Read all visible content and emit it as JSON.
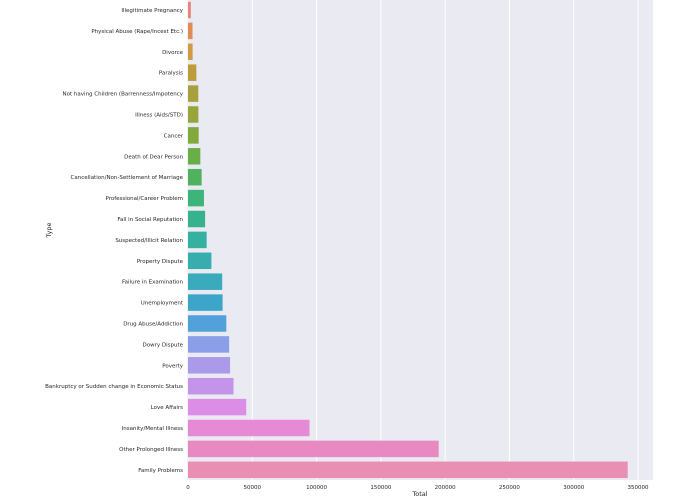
{
  "chart_data": {
    "type": "bar",
    "orientation": "horizontal",
    "xlabel": "Total",
    "ylabel": "Type",
    "xlim": [
      0,
      355000
    ],
    "xticks": [
      0,
      50000,
      100000,
      150000,
      200000,
      250000,
      300000,
      350000
    ],
    "xtick_labels": [
      "0",
      "50000",
      "100000",
      "150000",
      "200000",
      "250000",
      "300000",
      "350000"
    ],
    "grid": true,
    "legend": "none",
    "categories": [
      "Illegitimate Pregnancy",
      "Physical Abuse (Rape/Incest Etc.)",
      "Divorce",
      "Paralysis",
      "Not having Children (Barrenness/Impotency",
      "Illness (Aids/STD)",
      "Cancer",
      "Death of Dear Person",
      "Cancellation/Non-Settlement of Marriage",
      "Professional/Career Problem",
      "Fall in Social Reputation",
      "Suspected/Illicit Relation",
      "Property Dispute",
      "Failure in Examination",
      "Unemployment",
      "Drug Abuse/Addiction",
      "Dowry Dispute",
      "Poverty",
      "Bankruptcy or Sudden change in Economic Status",
      "Love Affairs",
      "Insanity/Mental Illness",
      "Other Prolonged Illness",
      "Family Problems"
    ],
    "values": [
      2200,
      3500,
      3600,
      6500,
      8000,
      8100,
      8300,
      9600,
      10600,
      12400,
      13300,
      14500,
      18200,
      26600,
      26900,
      29800,
      32000,
      32700,
      35400,
      45300,
      94500,
      195000,
      342000
    ],
    "colors": [
      "#e8827a",
      "#e08a54",
      "#d19a44",
      "#bd9c3c",
      "#a8a03c",
      "#96a53c",
      "#82a93c",
      "#6aae48",
      "#50b25e",
      "#3db479",
      "#37b28f",
      "#36b09f",
      "#38adad",
      "#3aaabd",
      "#3ca5c9",
      "#52a0dc",
      "#8b9ee8",
      "#ab9aea",
      "#c394ea",
      "#dc8de6",
      "#e68ad6",
      "#e88ac2",
      "#e98fb4"
    ]
  }
}
